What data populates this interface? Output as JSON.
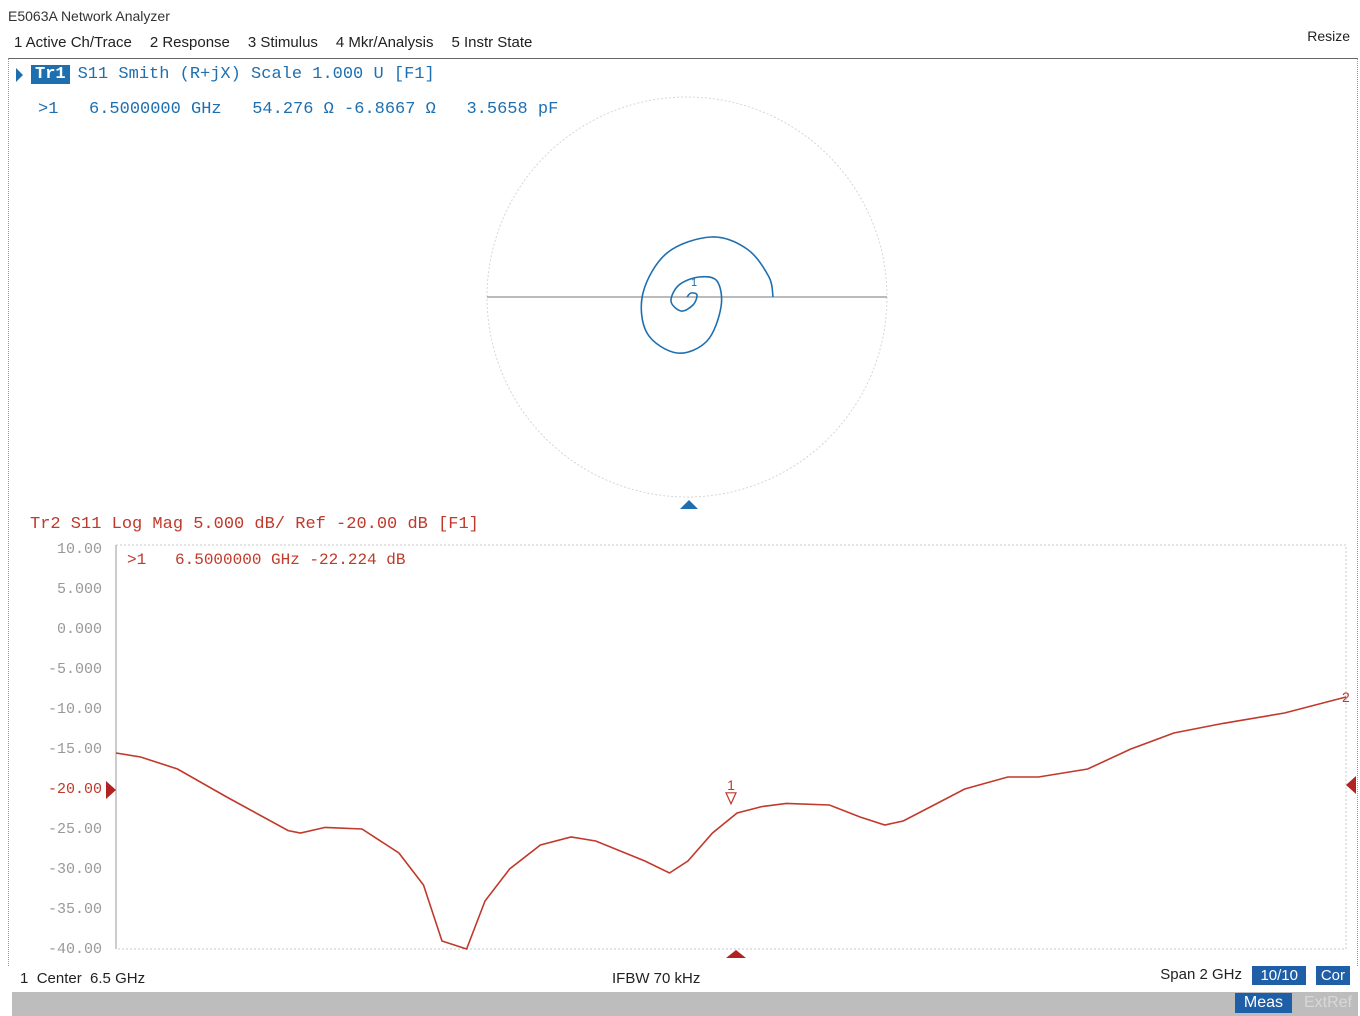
{
  "app": {
    "title": "E5063A Network Analyzer",
    "resize_label": "Resize"
  },
  "menu": [
    {
      "label": "1 Active Ch/Trace"
    },
    {
      "label": "2 Response"
    },
    {
      "label": "3 Stimulus"
    },
    {
      "label": "4 Mkr/Analysis"
    },
    {
      "label": "5 Instr State"
    }
  ],
  "trace1": {
    "badge": "Tr1",
    "header": "S11 Smith (R+jX) Scale 1.000 U [F1]",
    "marker_readout": ">1   6.5000000 GHz   54.276 Ω -6.8667 Ω   3.5658 pF",
    "color": "#1e6fb0"
  },
  "trace2": {
    "header": "Tr2 S11 Log Mag 5.000 dB/ Ref -20.00 dB [F1]",
    "marker_readout": ">1   6.5000000 GHz -22.224 dB",
    "color": "#c0392b",
    "marker1_label": "1",
    "marker2_label": "2"
  },
  "chart_data": [
    {
      "type": "line",
      "title": "Tr2 S11 Log Mag 5.000 dB/ Ref -20.00 dB [F1]",
      "xlabel": "",
      "ylabel": "",
      "x_range_ghz": [
        5.5,
        7.5
      ],
      "ylim": [
        -40,
        10
      ],
      "y_tick_labels": [
        "10.00",
        "5.000",
        "0.000",
        "-5.000",
        "-10.00",
        "-15.00",
        "-20.00",
        "-25.00",
        "-30.00",
        "-35.00",
        "-40.00"
      ],
      "reference_level_db": -20,
      "grid": false,
      "series": [
        {
          "x": [
            5.5,
            5.54,
            5.6,
            5.68,
            5.78,
            5.8,
            5.84,
            5.9,
            5.96,
            6.0,
            6.03,
            6.07,
            6.1,
            6.14,
            6.19,
            6.24,
            6.28,
            6.36,
            6.4,
            6.43,
            6.47,
            6.51,
            6.55,
            6.59,
            6.66,
            6.71,
            6.75,
            6.78,
            6.83,
            6.88,
            6.95,
            7.0,
            7.08,
            7.15,
            7.22,
            7.3,
            7.4,
            7.5
          ],
          "y": [
            -15.5,
            -16.0,
            -17.5,
            -21.0,
            -25.2,
            -25.5,
            -24.8,
            -25.0,
            -28.0,
            -32.0,
            -39.0,
            -40.0,
            -34.0,
            -30.0,
            -27.0,
            -26.0,
            -26.5,
            -29.0,
            -30.5,
            -29.0,
            -25.5,
            -23.0,
            -22.2,
            -21.8,
            -22.0,
            -23.5,
            -24.5,
            -24.0,
            -22.0,
            -20.0,
            -18.5,
            -18.5,
            -17.5,
            -15.0,
            -13.0,
            -11.8,
            -10.5,
            -8.5
          ]
        }
      ],
      "markers": [
        {
          "label": "1",
          "x_ghz": 6.5,
          "y_db": -22.224
        },
        {
          "label": "2",
          "x_ghz": 7.5,
          "y_db": -8.5
        }
      ]
    },
    {
      "type": "line",
      "title": "S11 Smith (R+jX) Scale 1.000 U [F1]",
      "xlabel": "",
      "ylabel": "",
      "grid": false,
      "series": [
        {
          "description_values_gamma_re": [
            0.43,
            0.41,
            0.3,
            0.12,
            -0.1,
            -0.22,
            -0.2,
            -0.05,
            0.1,
            0.17,
            0.15,
            0.06,
            -0.04,
            -0.08,
            -0.03,
            0.03,
            0.05,
            0.02,
            0.0
          ],
          "description_values_gamma_im": [
            0.0,
            0.1,
            0.24,
            0.3,
            0.22,
            0.02,
            -0.18,
            -0.28,
            -0.22,
            -0.05,
            0.08,
            0.1,
            0.06,
            -0.02,
            -0.07,
            -0.04,
            0.01,
            0.02,
            0.0
          ]
        }
      ],
      "markers": [
        {
          "label": "1",
          "x_ghz": 6.5,
          "r_ohm": 54.276,
          "x_ohm": -6.8667,
          "c_pf": 3.5658
        }
      ]
    }
  ],
  "status": {
    "channel": "1",
    "center": "Center  6.5 GHz",
    "ifbw": "IFBW 70 kHz",
    "span": "Span 2 GHz",
    "avg": "10/10",
    "cor": "Cor",
    "meas": "Meas",
    "extref": "ExtRef"
  }
}
